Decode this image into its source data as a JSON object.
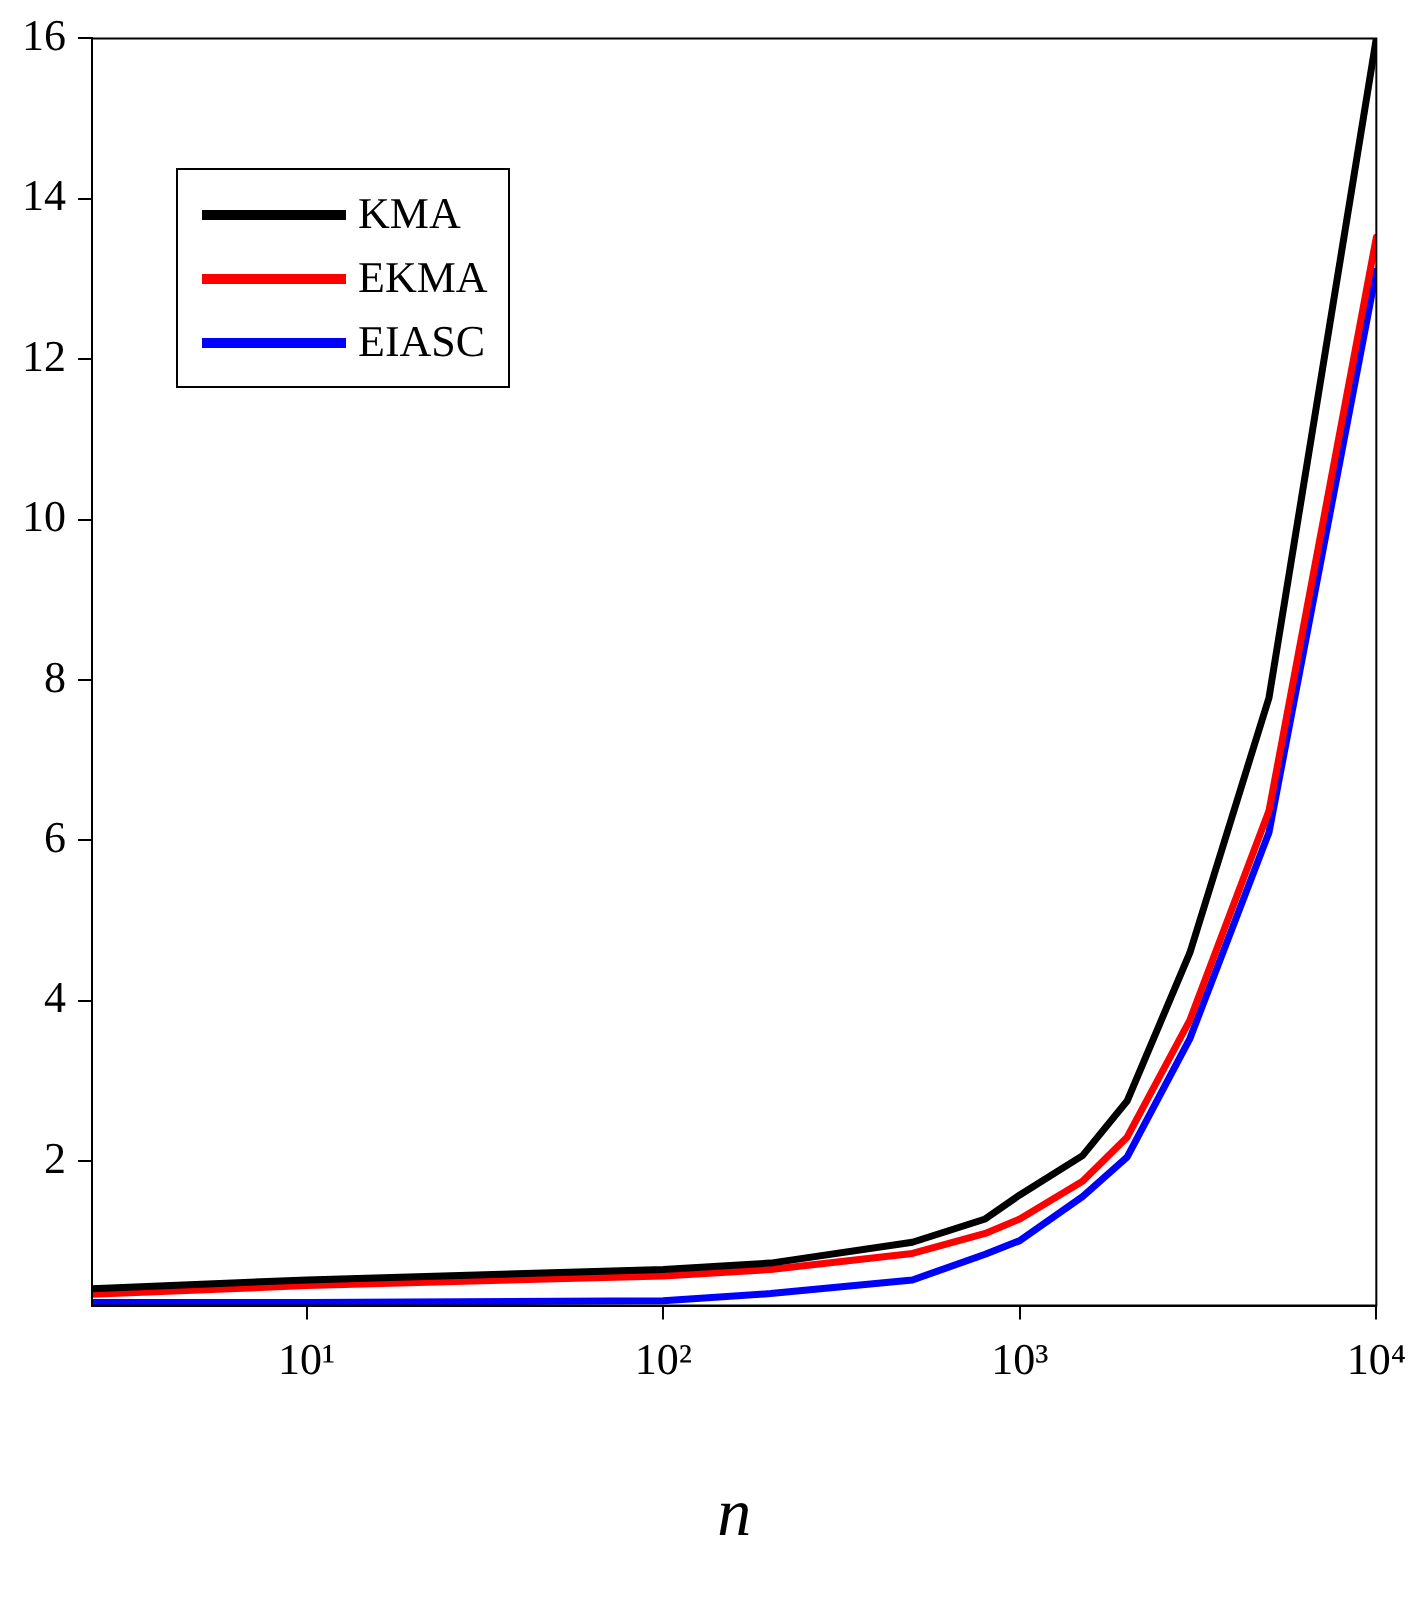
{
  "chart_data": {
    "type": "line",
    "xlabel": "n",
    "log": "x",
    "xlim": [
      2.5,
      10000
    ],
    "ylim": [
      0.2,
      16
    ],
    "xticks": [
      {
        "value": 10,
        "label": "10¹"
      },
      {
        "value": 100,
        "label": "10²"
      },
      {
        "value": 1000,
        "label": "10³"
      },
      {
        "value": 10000,
        "label": "10⁴"
      }
    ],
    "yticks": [
      2,
      4,
      6,
      8,
      10,
      12,
      14,
      16
    ],
    "grid": false,
    "legend": "top left",
    "marker": "none",
    "line_style": "solid",
    "x": [
      2.5,
      10,
      100,
      200,
      500,
      800,
      1000,
      1500,
      2000,
      3000,
      5000,
      10000
    ],
    "series": [
      {
        "name": "KMA",
        "color": "#000000",
        "values": [
          0.41,
          0.52,
          0.65,
          0.73,
          0.99,
          1.28,
          1.58,
          2.07,
          2.75,
          4.6,
          7.78,
          16
        ]
      },
      {
        "name": "EKMA",
        "color": "#ff0000",
        "values": [
          0.34,
          0.45,
          0.57,
          0.65,
          0.85,
          1.1,
          1.28,
          1.75,
          2.3,
          3.76,
          6.37,
          13.52
        ]
      },
      {
        "name": "EIASC",
        "color": "#0000ff",
        "values": [
          0.24,
          0.24,
          0.26,
          0.35,
          0.52,
          0.84,
          1.01,
          1.56,
          2.05,
          3.53,
          6.1,
          13.1
        ]
      }
    ]
  }
}
